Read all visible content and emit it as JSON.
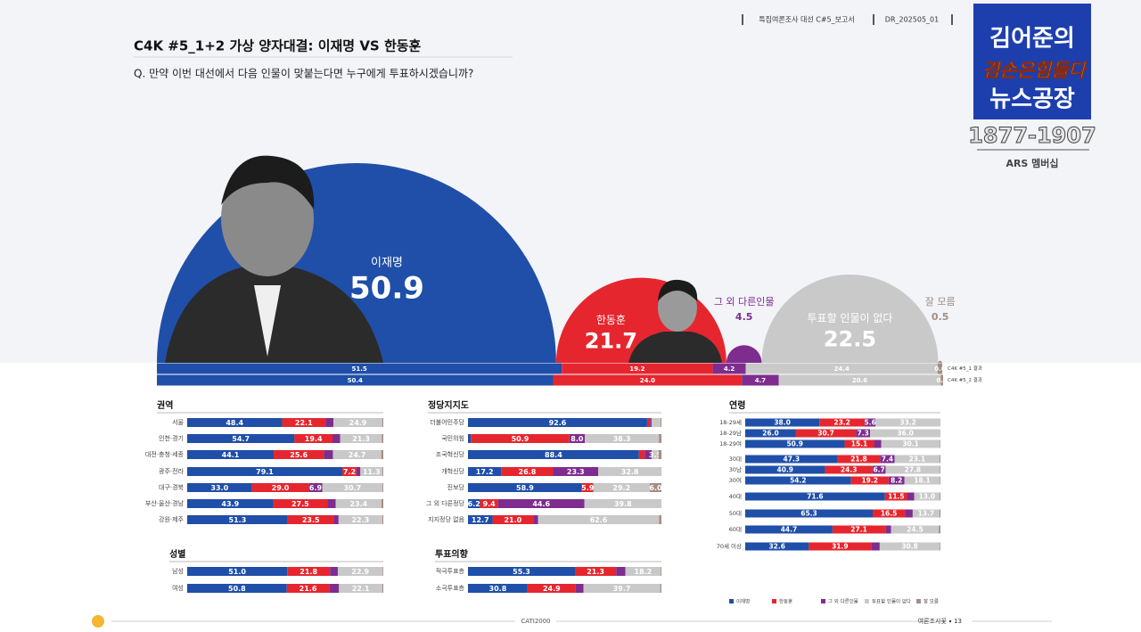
{
  "header": {
    "report": "특집여론조사 대선 C#5_보고서",
    "code": "DR_202505_01",
    "title": "C4K #5_1+2 가상 양자대결: 이재명 VS 한동훈",
    "question": "Q. 만약 이번 대선에서 다음 인물이 맞붙는다면 누구에게 투표하시겠습니까?"
  },
  "badge": {
    "line1": "김어준의",
    "line2": "겸손은힘들다",
    "line3": "뉴스공장",
    "phone": "1877-1907",
    "note": "ARS 멤버십"
  },
  "footer": {
    "center": "CATI2000",
    "org": "여론조사꽃",
    "page": 13
  },
  "chart_data": [
    {
      "type": "semicircle",
      "categories": [
        "이재명",
        "한동훈",
        "그 외 다른인물",
        "투표할 인물이 없다",
        "잘 모름"
      ],
      "values": [
        50.9,
        21.7,
        4.5,
        22.5,
        0.5
      ],
      "colors": [
        "#1f4fa8",
        "#e5262e",
        "#7e2d8f",
        "#c9c9c9",
        "#a38d83"
      ]
    },
    {
      "type": "stacked_bar",
      "xlim": [
        0,
        100
      ],
      "categories": [
        "C4K #5_1 결과",
        "C4K #5_2 결과"
      ],
      "series": [
        {
          "color": "#1f4fa8",
          "values": [
            51.5,
            50.4
          ],
          "value_labels": [
            "51.5",
            "50.4"
          ]
        },
        {
          "color": "#e5262e",
          "values": [
            19.2,
            24.0
          ],
          "value_labels": [
            "19.2",
            "24.0"
          ]
        },
        {
          "color": "#7e2d8f",
          "values": [
            4.2,
            4.7
          ],
          "value_labels": [
            "4.2",
            "4.7"
          ]
        },
        {
          "color": "#c9c9c9",
          "values": [
            24.4,
            20.6
          ],
          "value_labels": [
            "24.4",
            "20.6"
          ]
        },
        {
          "color": "#a38d83",
          "values": [
            0.6,
            0.3
          ],
          "value_labels": [
            "0.6",
            "0.3"
          ]
        }
      ]
    },
    {
      "type": "stacked_bar",
      "title": "권역",
      "xlim": [
        0,
        100
      ],
      "categories": [
        "서울",
        "인천·경기",
        "대전·충청·세종",
        "광주·전라",
        "대구·경북",
        "부산·울산·경남",
        "강원·제주"
      ],
      "series": [
        {
          "color": "#1f4fa8",
          "values": [
            48.4,
            54.7,
            44.1,
            79.1,
            33.0,
            43.9,
            51.3
          ],
          "value_labels": [
            "48.4",
            "54.7",
            "44.1",
            "79.1",
            "33.0",
            "43.9",
            "51.3"
          ]
        },
        {
          "color": "#e5262e",
          "values": [
            22.1,
            19.4,
            25.6,
            7.2,
            29.0,
            27.5,
            23.5
          ],
          "value_labels": [
            "22.1",
            "19.4",
            "25.6",
            "7.2",
            "29.0",
            "27.5",
            "23.5"
          ]
        },
        {
          "color": "#7e2d8f",
          "values": [
            4.1,
            3.9,
            4.6,
            2.0,
            6.9,
            4.3,
            2.4
          ],
          "value_labels": [
            null,
            null,
            null,
            null,
            "6.9",
            null,
            null
          ]
        },
        {
          "color": "#c9c9c9",
          "values": [
            24.9,
            21.3,
            24.7,
            11.3,
            30.7,
            23.4,
            22.3
          ],
          "value_labels": [
            "24.9",
            "21.3",
            "24.7",
            "11.3",
            "30.7",
            "23.4",
            "22.3"
          ]
        },
        {
          "color": "#a38d83",
          "values": [
            0.5,
            0.7,
            1.0,
            0.4,
            0.4,
            0.9,
            0.5
          ],
          "value_labels": [
            null,
            null,
            null,
            null,
            null,
            null,
            null
          ]
        }
      ]
    },
    {
      "type": "stacked_bar",
      "title": "성별",
      "xlim": [
        0,
        100
      ],
      "categories": [
        "남성",
        "여성"
      ],
      "series": [
        {
          "color": "#1f4fa8",
          "values": [
            51.0,
            50.8
          ],
          "value_labels": [
            "51.0",
            "50.8"
          ]
        },
        {
          "color": "#e5262e",
          "values": [
            21.8,
            21.6
          ],
          "value_labels": [
            "21.8",
            "21.6"
          ]
        },
        {
          "color": "#7e2d8f",
          "values": [
            4.0,
            5.0
          ],
          "value_labels": [
            null,
            null
          ]
        },
        {
          "color": "#c9c9c9",
          "values": [
            22.9,
            22.1
          ],
          "value_labels": [
            "22.9",
            "22.1"
          ]
        },
        {
          "color": "#a38d83",
          "values": [
            0.3,
            0.5
          ],
          "value_labels": [
            null,
            null
          ]
        }
      ]
    },
    {
      "type": "stacked_bar",
      "title": "정당지지도",
      "xlim": [
        0,
        100
      ],
      "categories": [
        "더불어민주당",
        "국민의힘",
        "조국혁신당",
        "개혁신당",
        "진보당",
        "그 외 다른정당",
        "지지정당 없음"
      ],
      "series": [
        {
          "color": "#1f4fa8",
          "values": [
            92.6,
            1.5,
            88.4,
            17.2,
            58.9,
            6.2,
            12.7
          ],
          "value_labels": [
            "92.6",
            null,
            "88.4",
            "17.2",
            "58.9",
            "6.2",
            "12.7"
          ]
        },
        {
          "color": "#e5262e",
          "values": [
            1.5,
            50.9,
            3.0,
            26.8,
            5.9,
            9.4,
            21.0
          ],
          "value_labels": [
            null,
            "50.9",
            null,
            "26.8",
            "5.9",
            "9.4",
            "21.0"
          ]
        },
        {
          "color": "#7e2d8f",
          "values": [
            0.8,
            8.0,
            3.6,
            23.3,
            0.0,
            44.6,
            2.5
          ],
          "value_labels": [
            null,
            "8.0",
            null,
            "23.3",
            null,
            "44.6",
            null
          ]
        },
        {
          "color": "#c9c9c9",
          "values": [
            4.6,
            38.3,
            3.5,
            32.8,
            29.2,
            39.8,
            62.6
          ],
          "value_labels": [
            null,
            "38.3",
            "3.5",
            "32.8",
            "29.2",
            "39.8",
            "62.6"
          ]
        },
        {
          "color": "#a38d83",
          "values": [
            0.5,
            1.3,
            1.5,
            0.0,
            6.0,
            0.0,
            1.2
          ],
          "value_labels": [
            null,
            null,
            null,
            null,
            "6.0",
            null,
            null
          ]
        }
      ]
    },
    {
      "type": "stacked_bar",
      "title": "투표의향",
      "xlim": [
        0,
        100
      ],
      "categories": [
        "적극투표층",
        "소극투표층"
      ],
      "series": [
        {
          "color": "#1f4fa8",
          "values": [
            55.3,
            30.8
          ],
          "value_labels": [
            "55.3",
            "30.8"
          ]
        },
        {
          "color": "#e5262e",
          "values": [
            21.3,
            24.9
          ],
          "value_labels": [
            "21.3",
            "24.9"
          ]
        },
        {
          "color": "#7e2d8f",
          "values": [
            4.8,
            4.0
          ],
          "value_labels": [
            null,
            null
          ]
        },
        {
          "color": "#c9c9c9",
          "values": [
            18.2,
            39.7
          ],
          "value_labels": [
            "18.2",
            "39.7"
          ]
        },
        {
          "color": "#a38d83",
          "values": [
            0.4,
            0.6
          ],
          "value_labels": [
            null,
            null
          ]
        }
      ]
    },
    {
      "type": "stacked_bar",
      "title": "연령",
      "xlim": [
        0,
        100
      ],
      "categories": [
        "18-29세",
        "18-29남",
        "18-29여",
        "30대",
        "30남",
        "30여",
        "40대",
        "50대",
        "60대",
        "70세 이상"
      ],
      "series": [
        {
          "color": "#1f4fa8",
          "values": [
            38.0,
            26.0,
            50.9,
            47.3,
            40.9,
            54.2,
            71.6,
            65.3,
            44.7,
            32.6
          ],
          "value_labels": [
            "38.0",
            "26.0",
            "50.9",
            "47.3",
            "40.9",
            "54.2",
            "71.6",
            "65.3",
            "44.7",
            "32.6"
          ]
        },
        {
          "color": "#e5262e",
          "values": [
            23.2,
            30.7,
            15.1,
            21.8,
            24.3,
            19.2,
            11.5,
            16.5,
            27.1,
            31.9
          ],
          "value_labels": [
            "23.2",
            "30.7",
            "15.1",
            "21.8",
            "24.3",
            "19.2",
            "11.5",
            "16.5",
            "27.1",
            "31.9"
          ]
        },
        {
          "color": "#7e2d8f",
          "values": [
            5.6,
            7.3,
            3.7,
            7.4,
            6.7,
            8.2,
            3.5,
            4.0,
            2.9,
            4.4
          ],
          "value_labels": [
            "5.6",
            "7.3",
            null,
            "7.4",
            "6.7",
            "8.2",
            null,
            null,
            null,
            null
          ]
        },
        {
          "color": "#c9c9c9",
          "values": [
            33.2,
            36.0,
            30.1,
            23.1,
            27.8,
            18.1,
            13.0,
            13.7,
            24.5,
            30.8
          ],
          "value_labels": [
            "33.2",
            "36.0",
            "30.1",
            "23.1",
            "27.8",
            "18.1",
            "13.0",
            "13.7",
            "24.5",
            "30.8"
          ]
        },
        {
          "color": "#a38d83",
          "values": [
            0.0,
            0.0,
            0.2,
            0.4,
            0.3,
            0.3,
            0.4,
            0.5,
            0.8,
            0.3
          ],
          "value_labels": [
            null,
            null,
            null,
            null,
            null,
            null,
            null,
            null,
            null,
            null
          ]
        }
      ]
    }
  ]
}
